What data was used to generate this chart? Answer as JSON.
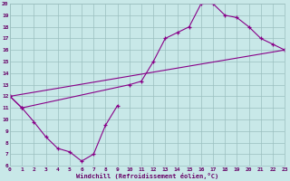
{
  "xlabel": "Windchill (Refroidissement éolien,°C)",
  "background_color": "#c8e8e8",
  "grid_color": "#9bbfbf",
  "line_color": "#880088",
  "xlim": [
    0,
    23
  ],
  "ylim": [
    6,
    20
  ],
  "xticks": [
    0,
    1,
    2,
    3,
    4,
    5,
    6,
    7,
    8,
    9,
    10,
    11,
    12,
    13,
    14,
    15,
    16,
    17,
    18,
    19,
    20,
    21,
    22,
    23
  ],
  "yticks": [
    6,
    7,
    8,
    9,
    10,
    11,
    12,
    13,
    14,
    15,
    16,
    17,
    18,
    19,
    20
  ],
  "curves": [
    {
      "x": [
        0,
        1,
        2,
        3,
        4,
        5,
        6,
        7,
        8,
        9
      ],
      "y": [
        12,
        11,
        9.8,
        8.5,
        7.5,
        7.2,
        6.4,
        7.0,
        9.5,
        11.2
      ]
    },
    {
      "x": [
        0,
        1,
        10,
        11,
        12,
        13,
        14,
        15,
        16,
        17,
        18,
        19,
        20,
        21,
        22,
        23
      ],
      "y": [
        12,
        11,
        13.0,
        13.3,
        15.0,
        17.0,
        17.5,
        18.0,
        20.0,
        20.0,
        19.0,
        18.8,
        18.0,
        17.0,
        16.5,
        16.0
      ]
    },
    {
      "x": [
        0,
        23
      ],
      "y": [
        12,
        16.0
      ]
    }
  ]
}
